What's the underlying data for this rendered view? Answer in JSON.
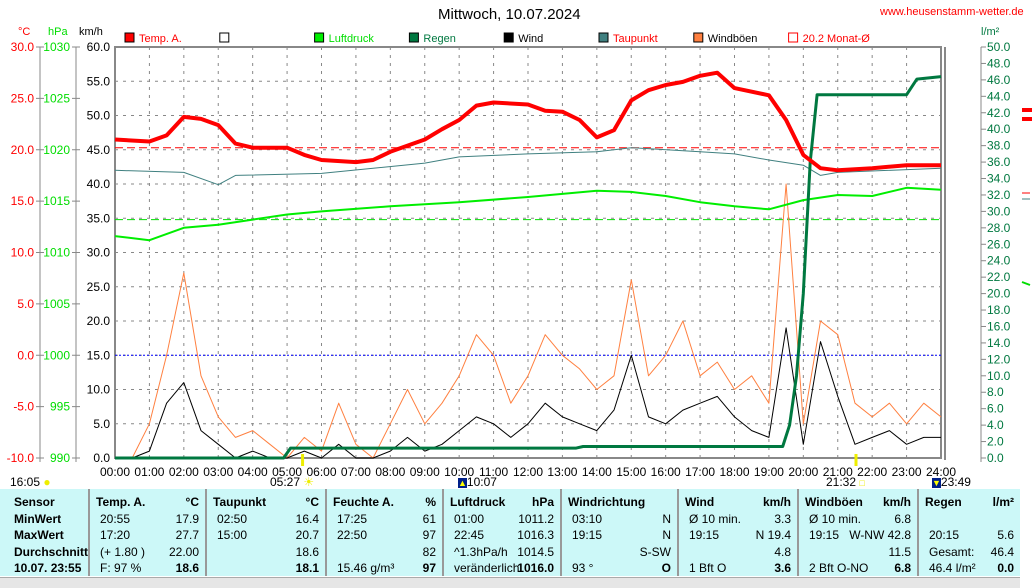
{
  "header": {
    "title": "Mittwoch, 10.07.2024",
    "website": "www.heusenstamm-wetter.de"
  },
  "axes": {
    "temp_unit": "°C",
    "pressure_unit": "hPa",
    "wind_unit": "km/h",
    "rain_unit": "l/m²",
    "temp_ticks": [
      "30.0",
      "25.0",
      "20.0",
      "15.0",
      "10.0",
      "5.0",
      "0.0",
      "-5.0",
      "-10.0"
    ],
    "pressure_ticks": [
      "1030",
      "1025",
      "1020",
      "1015",
      "1010",
      "1005",
      "1000",
      "995",
      "990"
    ],
    "wind_ticks": [
      "60.0",
      "55.0",
      "50.0",
      "45.0",
      "40.0",
      "35.0",
      "30.0",
      "25.0",
      "20.0",
      "15.0",
      "10.0",
      "5.0",
      "0.0"
    ],
    "rain_ticks": [
      "50.0",
      "48.0",
      "46.0",
      "44.0",
      "42.0",
      "40.0",
      "38.0",
      "36.0",
      "34.0",
      "32.0",
      "30.0",
      "28.0",
      "26.0",
      "24.0",
      "22.0",
      "20.0",
      "18.0",
      "16.0",
      "14.0",
      "12.0",
      "10.0",
      "8.0",
      "6.0",
      "4.0",
      "2.0",
      "0.0"
    ],
    "time_ticks": [
      "00:00",
      "01:00",
      "02:00",
      "03:00",
      "04:00",
      "05:00",
      "06:00",
      "07:00",
      "08:00",
      "09:00",
      "10:00",
      "11:00",
      "12:00",
      "13:00",
      "14:00",
      "15:00",
      "16:00",
      "17:00",
      "18:00",
      "19:00",
      "20:00",
      "21:00",
      "22:00",
      "23:00",
      "24:00"
    ]
  },
  "astro": {
    "moonset": "16:05",
    "sunrise": "05:27",
    "moonrise": "10:07",
    "sunset": "21:32",
    "moonset2": "23:49"
  },
  "chart_data": {
    "type": "line",
    "title": "Mittwoch, 10.07.2024",
    "xlabel": "",
    "x_unit": "hours",
    "xlim": [
      0,
      24
    ],
    "legend": [
      {
        "name": "Temp. A.",
        "color": "#ff0000"
      },
      {
        "name": "",
        "color": "#ffffff"
      },
      {
        "name": "Luftdruck",
        "color": "#00ee00"
      },
      {
        "name": "Regen",
        "color": "#007840"
      },
      {
        "name": "Wind",
        "color": "#000000"
      },
      {
        "name": "Taupunkt",
        "color": "#408080"
      },
      {
        "name": "Windböen",
        "color": "#ff8040"
      },
      {
        "name": "20.2 Monat-Ø",
        "color": "#ff0000"
      }
    ],
    "temp_ylim": [
      -10,
      30
    ],
    "pressure_ylim": [
      990,
      1030
    ],
    "wind_ylim": [
      0,
      60
    ],
    "rain_ylim": [
      0,
      50
    ],
    "reference_lines": {
      "month_avg_temp": 20.2,
      "std_pressure": 1013.2,
      "zero_temp": 0
    },
    "series": [
      {
        "name": "Temp. A.",
        "axis": "temp",
        "x": [
          0,
          1,
          1.5,
          2,
          2.5,
          3,
          3.5,
          4,
          5,
          5.5,
          6,
          7,
          7.5,
          8,
          9,
          9.5,
          10,
          10.5,
          11,
          12,
          12.5,
          13,
          13.5,
          14,
          14.5,
          15,
          15.5,
          16,
          16.5,
          17,
          17.5,
          18,
          19,
          19.5,
          20,
          20.5,
          21,
          22,
          23,
          24
        ],
        "values": [
          21.0,
          20.8,
          21.4,
          23.2,
          23.0,
          22.4,
          20.6,
          20.2,
          20.2,
          19.5,
          19.0,
          18.8,
          19.0,
          19.8,
          21.0,
          22.0,
          22.9,
          24.3,
          24.6,
          24.4,
          23.8,
          23.7,
          22.9,
          21.2,
          21.9,
          24.8,
          25.8,
          26.3,
          26.6,
          27.2,
          27.5,
          26.0,
          25.3,
          22.9,
          19.5,
          18.2,
          18.0,
          18.2,
          18.5,
          18.5
        ]
      },
      {
        "name": "Taupunkt",
        "axis": "temp",
        "x": [
          0,
          2,
          3,
          3.5,
          6,
          9,
          10,
          12,
          14,
          15,
          17,
          18,
          19,
          20,
          20.5,
          21,
          24
        ],
        "values": [
          18.0,
          17.8,
          16.6,
          17.5,
          17.7,
          18.7,
          19.3,
          19.6,
          19.8,
          20.2,
          19.8,
          19.6,
          19.0,
          18.5,
          17.5,
          17.8,
          18.2
        ]
      },
      {
        "name": "Luftdruck",
        "axis": "pressure",
        "x": [
          0,
          1,
          2,
          3,
          4,
          5,
          6,
          8,
          10,
          12,
          14,
          15,
          16,
          17,
          18,
          19,
          20,
          21,
          22,
          23,
          24
        ],
        "values": [
          1011.6,
          1011.2,
          1012.4,
          1012.7,
          1013.2,
          1013.7,
          1014.0,
          1014.5,
          1014.9,
          1015.4,
          1016.0,
          1015.9,
          1015.5,
          1014.9,
          1014.5,
          1014.2,
          1015.1,
          1015.6,
          1015.5,
          1016.3,
          1016.1
        ]
      },
      {
        "name": "Regen",
        "axis": "rain",
        "x": [
          0,
          4.9,
          5.1,
          13.4,
          13.6,
          19.4,
          19.6,
          19.8,
          20.0,
          20.2,
          20.4,
          21,
          23,
          23.3,
          24
        ],
        "values": [
          0,
          0,
          1.2,
          1.2,
          1.4,
          1.4,
          4,
          10,
          20,
          36,
          44.2,
          44.2,
          44.2,
          46.1,
          46.4
        ]
      },
      {
        "name": "Wind",
        "axis": "wind",
        "x": [
          0,
          0.5,
          1,
          1.5,
          2,
          2.5,
          3,
          3.5,
          4,
          4.5,
          5,
          5.5,
          6,
          6.5,
          7,
          7.5,
          8,
          8.5,
          9,
          9.5,
          10,
          10.5,
          11,
          11.5,
          12,
          12.5,
          13,
          13.5,
          14,
          14.5,
          15,
          15.5,
          16,
          16.5,
          17,
          17.5,
          18,
          18.5,
          19,
          19.5,
          20,
          20.5,
          21,
          21.5,
          22,
          22.5,
          23,
          23.5,
          24
        ],
        "values": [
          0,
          0,
          1,
          8,
          11,
          4,
          2,
          0,
          1,
          0,
          0,
          1,
          0,
          2,
          0,
          0,
          1,
          3,
          1,
          2,
          4,
          6,
          5,
          3,
          5,
          8,
          6,
          5,
          4,
          7,
          15,
          6,
          5,
          7,
          8,
          9,
          6,
          4,
          3,
          19,
          2,
          17,
          9,
          2,
          3,
          4,
          2,
          3,
          3
        ]
      },
      {
        "name": "Windböen",
        "axis": "wind",
        "x": [
          0,
          0.5,
          1,
          1.5,
          2,
          2.5,
          3,
          3.5,
          4,
          4.5,
          5,
          5.5,
          6,
          6.5,
          7,
          7.5,
          8,
          8.5,
          9,
          9.5,
          10,
          10.5,
          11,
          11.5,
          12,
          12.5,
          13,
          13.5,
          14,
          14.5,
          15,
          15.5,
          16,
          16.5,
          17,
          17.5,
          18,
          18.5,
          19,
          19.5,
          20,
          20.5,
          21,
          21.5,
          22,
          22.5,
          23,
          23.5,
          24
        ],
        "values": [
          0,
          0,
          5,
          15,
          27,
          12,
          6,
          3,
          4,
          2,
          0,
          3,
          1,
          8,
          2,
          0,
          5,
          10,
          5,
          8,
          12,
          18,
          15,
          8,
          12,
          18,
          15,
          13,
          10,
          12,
          26,
          12,
          15,
          20,
          12,
          14,
          10,
          12,
          8,
          40,
          5,
          20,
          18,
          8,
          6,
          8,
          5,
          8,
          6
        ]
      }
    ]
  },
  "table": {
    "columns": [
      {
        "header": "Sensor",
        "unit": "",
        "rows": [
          [
            "MinWert",
            ""
          ],
          [
            "MaxWert",
            ""
          ],
          [
            "Durchschnitt",
            ""
          ],
          [
            "10.07. 23:55",
            ""
          ]
        ]
      },
      {
        "header": "Temp. A.",
        "unit": "°C",
        "rows": [
          [
            "20:55",
            "17.9"
          ],
          [
            "17:20",
            "27.7"
          ],
          [
            "(+ 1.80 )",
            "22.00"
          ],
          [
            "F: 97 %",
            "18.6"
          ]
        ]
      },
      {
        "header": "Taupunkt",
        "unit": "°C",
        "rows": [
          [
            "02:50",
            "16.4"
          ],
          [
            "15:00",
            "20.7"
          ],
          [
            "",
            "18.6"
          ],
          [
            "",
            "18.1"
          ]
        ]
      },
      {
        "header": "Feuchte A.",
        "unit": "%",
        "rows": [
          [
            "17:25",
            "61"
          ],
          [
            "22:50",
            "97"
          ],
          [
            "",
            "82"
          ],
          [
            "15.46 g/m³",
            "97"
          ]
        ]
      },
      {
        "header": "Luftdruck",
        "unit": "hPa",
        "rows": [
          [
            "01:00",
            "1011.2"
          ],
          [
            "22:45",
            "1016.3"
          ],
          [
            "^1.3hPa/h",
            "1014.5"
          ],
          [
            "veränderlich",
            "1016.0"
          ]
        ]
      },
      {
        "header": "Windrichtung",
        "unit": "",
        "rows": [
          [
            "03:10",
            "N"
          ],
          [
            "19:15",
            "N"
          ],
          [
            "",
            "S-SW"
          ],
          [
            "93 °",
            "O"
          ]
        ]
      },
      {
        "header": "Wind",
        "unit": "km/h",
        "rows": [
          [
            "Ø 10 min.",
            "3.3"
          ],
          [
            "19:15",
            "N 19.4"
          ],
          [
            "",
            "4.8"
          ],
          [
            "1 Bft O",
            "3.6"
          ]
        ]
      },
      {
        "header": "Windböen",
        "unit": "km/h",
        "rows": [
          [
            "Ø 10 min.",
            "6.8"
          ],
          [
            "19:15",
            "W-NW 42.8"
          ],
          [
            "",
            "11.5"
          ],
          [
            "2 Bft O-NO",
            "6.8"
          ]
        ]
      },
      {
        "header": "Regen",
        "unit": "l/m²",
        "rows": [
          [
            "",
            ""
          ],
          [
            "20:15",
            "5.6"
          ],
          [
            "Gesamt:",
            "46.4"
          ],
          [
            "46.4 l/m²",
            "0.0"
          ]
        ]
      }
    ]
  }
}
